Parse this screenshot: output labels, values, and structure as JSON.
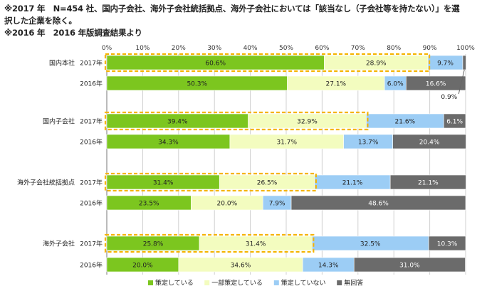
{
  "notes": [
    "※2017 年　N=454 社、国内子会社、海外子会社統括拠点、海外子会社においては「該当なし（子会社等を持たない）」を選",
    "択した企業を除く。",
    "※2016 年　2016 年版調査結果より"
  ],
  "chart_data": {
    "type": "bar",
    "orientation": "horizontal",
    "stacked": true,
    "percent_stacked": true,
    "xlim": [
      0,
      100
    ],
    "x_ticks": [
      "0%",
      "10%",
      "20%",
      "30%",
      "40%",
      "50%",
      "60%",
      "70%",
      "80%",
      "90%",
      "100%"
    ],
    "grid": true,
    "legend_position": "bottom",
    "colors": [
      "#7cc61f",
      "#f3fcbf",
      "#9ccdf5",
      "#6b6b6b"
    ],
    "series": [
      {
        "name": "策定している"
      },
      {
        "name": "一部策定している"
      },
      {
        "name": "策定していない"
      },
      {
        "name": "無回答"
      }
    ],
    "groups": [
      {
        "name": "国内本社",
        "rows": [
          {
            "year": "2017年",
            "values": [
              60.6,
              28.9,
              9.7,
              0.9
            ],
            "labels": [
              "60.6%",
              "28.9%",
              "9.7%",
              ""
            ],
            "highlight_series_count": 2
          },
          {
            "year": "2016年",
            "values": [
              50.3,
              27.1,
              6.0,
              16.6
            ],
            "labels": [
              "50.3%",
              "27.1%",
              "6.0%",
              "16.6%"
            ]
          }
        ]
      },
      {
        "name": "国内子会社",
        "rows": [
          {
            "year": "2017年",
            "values": [
              39.4,
              32.9,
              21.6,
              6.1
            ],
            "labels": [
              "39.4%",
              "32.9%",
              "21.6%",
              "6.1%"
            ],
            "highlight_series_count": 2
          },
          {
            "year": "2016年",
            "values": [
              34.3,
              31.7,
              13.7,
              20.4
            ],
            "labels": [
              "34.3%",
              "31.7%",
              "13.7%",
              "20.4%"
            ]
          }
        ]
      },
      {
        "name": "海外子会社統括拠点",
        "rows": [
          {
            "year": "2017年",
            "values": [
              31.4,
              26.5,
              21.1,
              21.1
            ],
            "labels": [
              "31.4%",
              "26.5%",
              "21.1%",
              "21.1%"
            ],
            "highlight_series_count": 2
          },
          {
            "year": "2016年",
            "values": [
              23.5,
              20.0,
              7.9,
              48.6
            ],
            "labels": [
              "23.5%",
              "20.0%",
              "7.9%",
              "48.6%"
            ]
          }
        ]
      },
      {
        "name": "海外子会社",
        "rows": [
          {
            "year": "2017年",
            "values": [
              25.8,
              31.4,
              32.5,
              10.3
            ],
            "labels": [
              "25.8%",
              "31.4%",
              "32.5%",
              "10.3%"
            ],
            "highlight_series_count": 2
          },
          {
            "year": "2016年",
            "values": [
              20.0,
              34.6,
              14.3,
              31.0
            ],
            "labels": [
              "20.0%",
              "34.6%",
              "14.3%",
              "31.0%"
            ]
          }
        ]
      }
    ],
    "annotations": [
      {
        "text": "0.9%",
        "group": 0,
        "row": 0,
        "series": 3
      }
    ]
  }
}
